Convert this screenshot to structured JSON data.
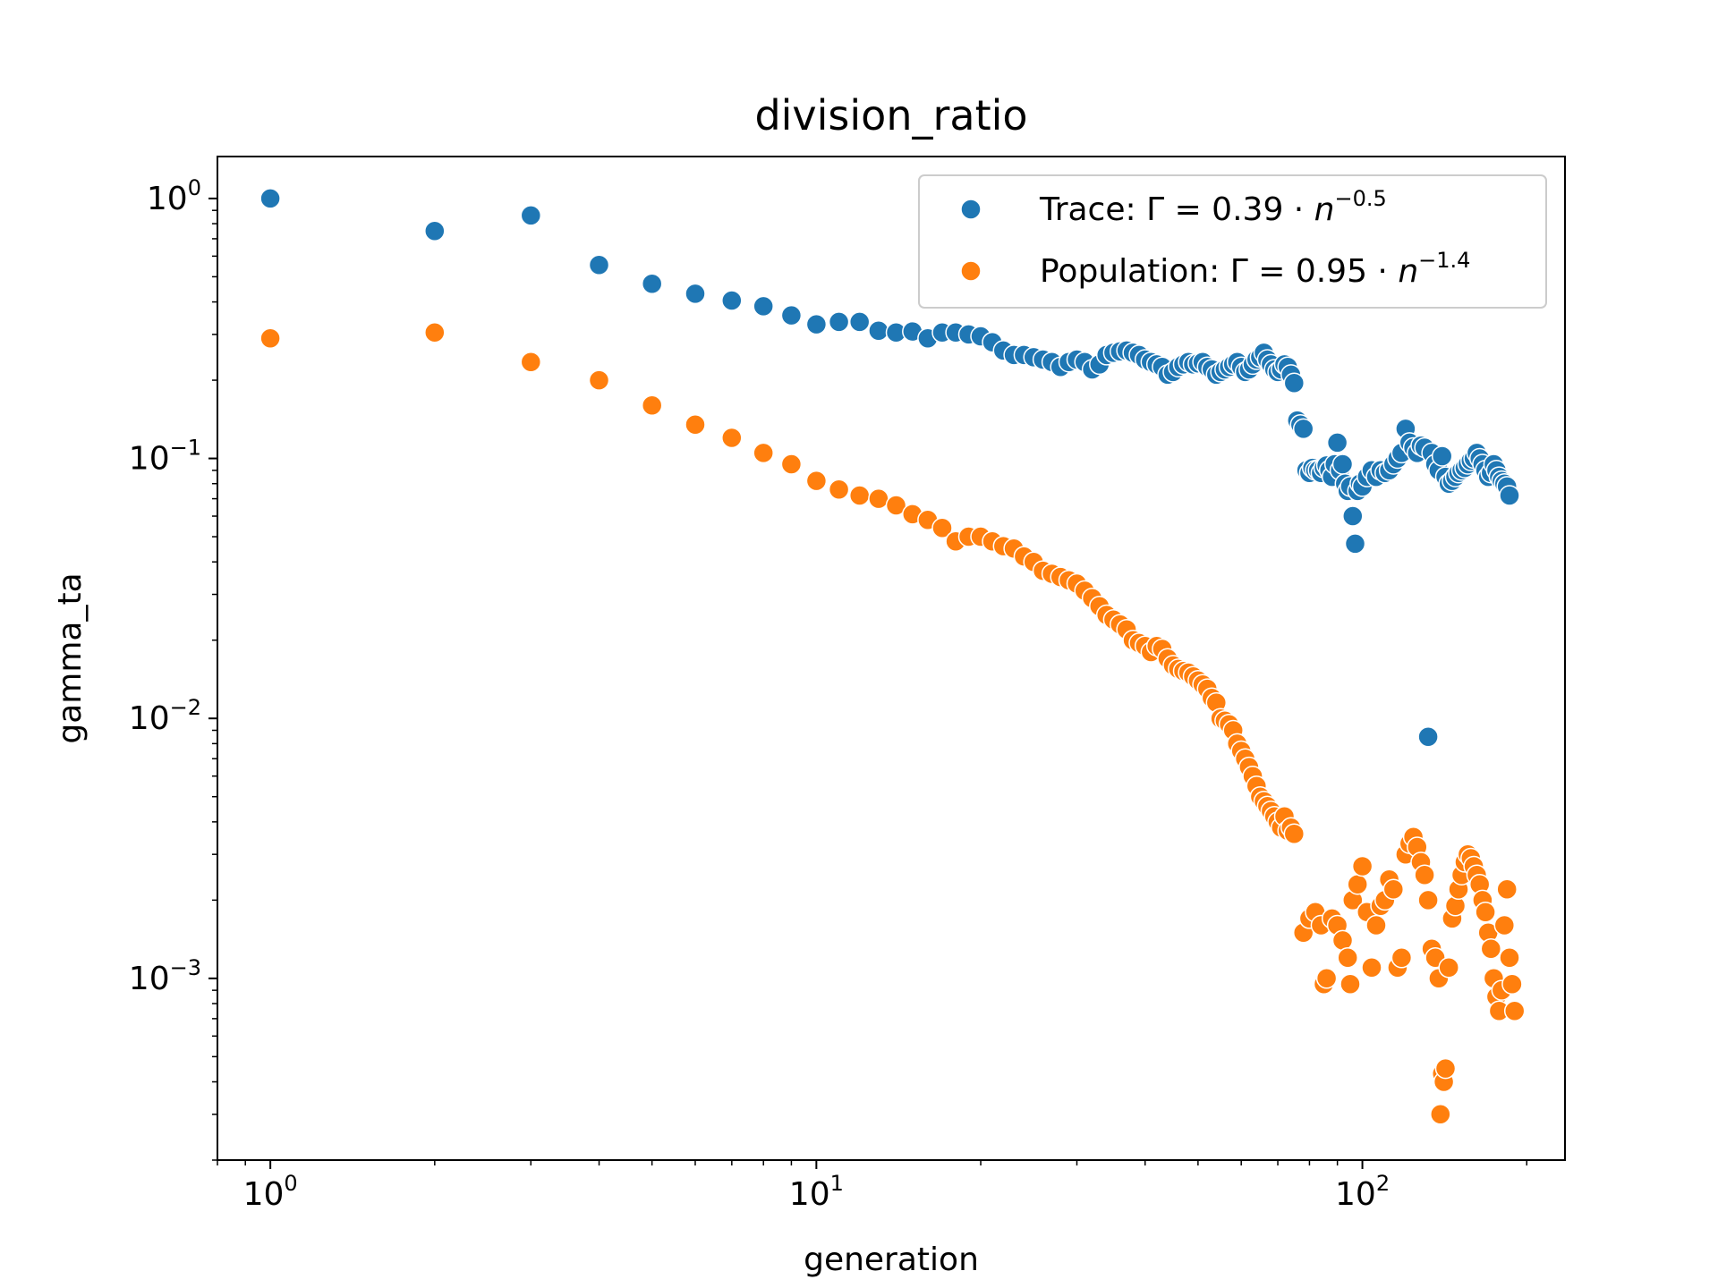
{
  "chart_data": {
    "type": "scatter",
    "title": "division_ratio",
    "xlabel": "generation",
    "ylabel": "gamma_ta",
    "xscale": "log",
    "yscale": "log",
    "xlim": [
      0.8,
      235
    ],
    "ylim": [
      0.0002,
      1.45
    ],
    "grid": false,
    "legend_position": "top-right",
    "x_ticks": [
      {
        "base": "10",
        "exp": "0",
        "value": 1
      },
      {
        "base": "10",
        "exp": "1",
        "value": 10
      },
      {
        "base": "10",
        "exp": "2",
        "value": 100
      }
    ],
    "y_ticks": [
      {
        "base": "10",
        "exp": "0",
        "value": 1
      },
      {
        "base": "10",
        "exp": "−1",
        "value": 0.1
      },
      {
        "base": "10",
        "exp": "−2",
        "value": 0.01
      },
      {
        "base": "10",
        "exp": "−3",
        "value": 0.001
      }
    ],
    "series": [
      {
        "name_prefix": "Trace: ",
        "name_math": "Γ = 0.39 · ",
        "name_var": "n",
        "name_exp": "−0.5",
        "color": "#1f77b4",
        "points": [
          [
            1,
            1.0
          ],
          [
            2,
            0.75
          ],
          [
            3,
            0.86
          ],
          [
            4,
            0.555
          ],
          [
            5,
            0.47
          ],
          [
            6,
            0.43
          ],
          [
            7,
            0.405
          ],
          [
            8,
            0.385
          ],
          [
            9,
            0.355
          ],
          [
            10,
            0.328
          ],
          [
            11,
            0.335
          ],
          [
            12,
            0.335
          ],
          [
            13,
            0.31
          ],
          [
            14,
            0.305
          ],
          [
            15,
            0.308
          ],
          [
            16,
            0.29
          ],
          [
            17,
            0.305
          ],
          [
            18,
            0.305
          ],
          [
            19,
            0.3
          ],
          [
            20,
            0.295
          ],
          [
            21,
            0.28
          ],
          [
            22,
            0.26
          ],
          [
            23,
            0.25
          ],
          [
            24,
            0.25
          ],
          [
            25,
            0.245
          ],
          [
            26,
            0.24
          ],
          [
            27,
            0.235
          ],
          [
            28,
            0.225
          ],
          [
            29,
            0.235
          ],
          [
            30,
            0.24
          ],
          [
            31,
            0.235
          ],
          [
            32,
            0.22
          ],
          [
            33,
            0.23
          ],
          [
            34,
            0.25
          ],
          [
            35,
            0.255
          ],
          [
            36,
            0.258
          ],
          [
            37,
            0.26
          ],
          [
            38,
            0.255
          ],
          [
            39,
            0.25
          ],
          [
            40,
            0.24
          ],
          [
            41,
            0.235
          ],
          [
            42,
            0.23
          ],
          [
            43,
            0.225
          ],
          [
            44,
            0.21
          ],
          [
            45,
            0.215
          ],
          [
            46,
            0.225
          ],
          [
            47,
            0.23
          ],
          [
            48,
            0.235
          ],
          [
            49,
            0.23
          ],
          [
            50,
            0.232
          ],
          [
            51,
            0.235
          ],
          [
            52,
            0.225
          ],
          [
            53,
            0.22
          ],
          [
            54,
            0.21
          ],
          [
            55,
            0.215
          ],
          [
            56,
            0.22
          ],
          [
            57,
            0.225
          ],
          [
            58,
            0.23
          ],
          [
            59,
            0.235
          ],
          [
            60,
            0.225
          ],
          [
            61,
            0.215
          ],
          [
            62,
            0.22
          ],
          [
            63,
            0.23
          ],
          [
            64,
            0.24
          ],
          [
            65,
            0.245
          ],
          [
            66,
            0.255
          ],
          [
            67,
            0.24
          ],
          [
            68,
            0.23
          ],
          [
            69,
            0.22
          ],
          [
            70,
            0.215
          ],
          [
            71,
            0.22
          ],
          [
            72,
            0.23
          ],
          [
            73,
            0.225
          ],
          [
            74,
            0.21
          ],
          [
            75,
            0.195
          ],
          [
            76,
            0.14
          ],
          [
            77,
            0.135
          ],
          [
            78,
            0.13
          ],
          [
            79,
            0.09
          ],
          [
            80,
            0.088
          ],
          [
            81,
            0.092
          ],
          [
            82,
            0.09
          ],
          [
            83,
            0.09
          ],
          [
            84,
            0.088
          ],
          [
            85,
            0.092
          ],
          [
            86,
            0.094
          ],
          [
            87,
            0.09
          ],
          [
            88,
            0.085
          ],
          [
            89,
            0.095
          ],
          [
            90,
            0.115
          ],
          [
            91,
            0.09
          ],
          [
            92,
            0.095
          ],
          [
            93,
            0.08
          ],
          [
            94,
            0.075
          ],
          [
            95,
            0.078
          ],
          [
            96,
            0.06
          ],
          [
            97,
            0.047
          ],
          [
            98,
            0.075
          ],
          [
            99,
            0.08
          ],
          [
            100,
            0.078
          ],
          [
            102,
            0.085
          ],
          [
            104,
            0.09
          ],
          [
            106,
            0.085
          ],
          [
            108,
            0.09
          ],
          [
            110,
            0.088
          ],
          [
            112,
            0.09
          ],
          [
            114,
            0.095
          ],
          [
            116,
            0.1
          ],
          [
            118,
            0.105
          ],
          [
            120,
            0.13
          ],
          [
            122,
            0.115
          ],
          [
            124,
            0.11
          ],
          [
            126,
            0.105
          ],
          [
            128,
            0.112
          ],
          [
            130,
            0.11
          ],
          [
            132,
            0.0085
          ],
          [
            134,
            0.105
          ],
          [
            136,
            0.095
          ],
          [
            138,
            0.09
          ],
          [
            140,
            0.102
          ],
          [
            142,
            0.085
          ],
          [
            144,
            0.08
          ],
          [
            146,
            0.082
          ],
          [
            148,
            0.085
          ],
          [
            150,
            0.088
          ],
          [
            152,
            0.09
          ],
          [
            154,
            0.092
          ],
          [
            156,
            0.095
          ],
          [
            158,
            0.098
          ],
          [
            160,
            0.1
          ],
          [
            162,
            0.105
          ],
          [
            164,
            0.1
          ],
          [
            166,
            0.095
          ],
          [
            168,
            0.09
          ],
          [
            170,
            0.085
          ],
          [
            172,
            0.088
          ],
          [
            174,
            0.095
          ],
          [
            176,
            0.09
          ],
          [
            178,
            0.085
          ],
          [
            180,
            0.082
          ],
          [
            182,
            0.08
          ],
          [
            184,
            0.078
          ],
          [
            186,
            0.072
          ]
        ]
      },
      {
        "name_prefix": "Population: ",
        "name_math": "Γ = 0.95 · ",
        "name_var": "n",
        "name_exp": "−1.4",
        "color": "#ff7f0e",
        "points": [
          [
            1,
            0.29
          ],
          [
            2,
            0.305
          ],
          [
            3,
            0.235
          ],
          [
            4,
            0.2
          ],
          [
            5,
            0.16
          ],
          [
            6,
            0.135
          ],
          [
            7,
            0.12
          ],
          [
            8,
            0.105
          ],
          [
            9,
            0.095
          ],
          [
            10,
            0.082
          ],
          [
            11,
            0.076
          ],
          [
            12,
            0.072
          ],
          [
            13,
            0.07
          ],
          [
            14,
            0.066
          ],
          [
            15,
            0.061
          ],
          [
            16,
            0.058
          ],
          [
            17,
            0.054
          ],
          [
            18,
            0.048
          ],
          [
            19,
            0.05
          ],
          [
            20,
            0.05
          ],
          [
            21,
            0.048
          ],
          [
            22,
            0.046
          ],
          [
            23,
            0.045
          ],
          [
            24,
            0.042
          ],
          [
            25,
            0.04
          ],
          [
            26,
            0.037
          ],
          [
            27,
            0.036
          ],
          [
            28,
            0.035
          ],
          [
            29,
            0.034
          ],
          [
            30,
            0.033
          ],
          [
            31,
            0.031
          ],
          [
            32,
            0.029
          ],
          [
            33,
            0.027
          ],
          [
            34,
            0.025
          ],
          [
            35,
            0.024
          ],
          [
            36,
            0.023
          ],
          [
            37,
            0.022
          ],
          [
            38,
            0.02
          ],
          [
            39,
            0.0195
          ],
          [
            40,
            0.019
          ],
          [
            41,
            0.018
          ],
          [
            42,
            0.019
          ],
          [
            43,
            0.0185
          ],
          [
            44,
            0.017
          ],
          [
            45,
            0.016
          ],
          [
            46,
            0.0155
          ],
          [
            47,
            0.0152
          ],
          [
            48,
            0.015
          ],
          [
            49,
            0.0145
          ],
          [
            50,
            0.014
          ],
          [
            51,
            0.0135
          ],
          [
            52,
            0.013
          ],
          [
            53,
            0.012
          ],
          [
            54,
            0.0115
          ],
          [
            55,
            0.01
          ],
          [
            56,
            0.0098
          ],
          [
            57,
            0.0095
          ],
          [
            58,
            0.009
          ],
          [
            59,
            0.008
          ],
          [
            60,
            0.0075
          ],
          [
            61,
            0.007
          ],
          [
            62,
            0.0065
          ],
          [
            63,
            0.006
          ],
          [
            64,
            0.0055
          ],
          [
            65,
            0.005
          ],
          [
            66,
            0.0048
          ],
          [
            67,
            0.0046
          ],
          [
            68,
            0.0044
          ],
          [
            69,
            0.0042
          ],
          [
            70,
            0.004
          ],
          [
            71,
            0.0038
          ],
          [
            72,
            0.0042
          ],
          [
            73,
            0.0037
          ],
          [
            74,
            0.0038
          ],
          [
            75,
            0.0036
          ],
          [
            78,
            0.0015
          ],
          [
            80,
            0.0017
          ],
          [
            82,
            0.0018
          ],
          [
            84,
            0.0016
          ],
          [
            85,
            0.00095
          ],
          [
            86,
            0.001
          ],
          [
            88,
            0.0017
          ],
          [
            90,
            0.0016
          ],
          [
            92,
            0.0014
          ],
          [
            94,
            0.0012
          ],
          [
            95,
            0.00095
          ],
          [
            96,
            0.002
          ],
          [
            98,
            0.0023
          ],
          [
            100,
            0.0027
          ],
          [
            102,
            0.0018
          ],
          [
            104,
            0.0011
          ],
          [
            106,
            0.0016
          ],
          [
            108,
            0.0019
          ],
          [
            110,
            0.002
          ],
          [
            112,
            0.0024
          ],
          [
            114,
            0.0022
          ],
          [
            116,
            0.0011
          ],
          [
            118,
            0.0012
          ],
          [
            120,
            0.003
          ],
          [
            122,
            0.0033
          ],
          [
            124,
            0.0035
          ],
          [
            126,
            0.0032
          ],
          [
            128,
            0.0028
          ],
          [
            130,
            0.0025
          ],
          [
            132,
            0.002
          ],
          [
            134,
            0.0013
          ],
          [
            136,
            0.0012
          ],
          [
            138,
            0.001
          ],
          [
            139,
            0.0003
          ],
          [
            140,
            0.00043
          ],
          [
            141,
            0.0004
          ],
          [
            142,
            0.00045
          ],
          [
            144,
            0.0011
          ],
          [
            146,
            0.0017
          ],
          [
            148,
            0.0019
          ],
          [
            150,
            0.0022
          ],
          [
            152,
            0.0025
          ],
          [
            154,
            0.0028
          ],
          [
            156,
            0.003
          ],
          [
            158,
            0.0029
          ],
          [
            160,
            0.0027
          ],
          [
            162,
            0.0025
          ],
          [
            164,
            0.0023
          ],
          [
            166,
            0.002
          ],
          [
            168,
            0.0018
          ],
          [
            170,
            0.0015
          ],
          [
            172,
            0.0013
          ],
          [
            174,
            0.001
          ],
          [
            176,
            0.00085
          ],
          [
            178,
            0.00075
          ],
          [
            180,
            0.0009
          ],
          [
            182,
            0.0016
          ],
          [
            184,
            0.0022
          ],
          [
            186,
            0.0012
          ],
          [
            188,
            0.00095
          ],
          [
            190,
            0.00075
          ]
        ]
      }
    ]
  }
}
